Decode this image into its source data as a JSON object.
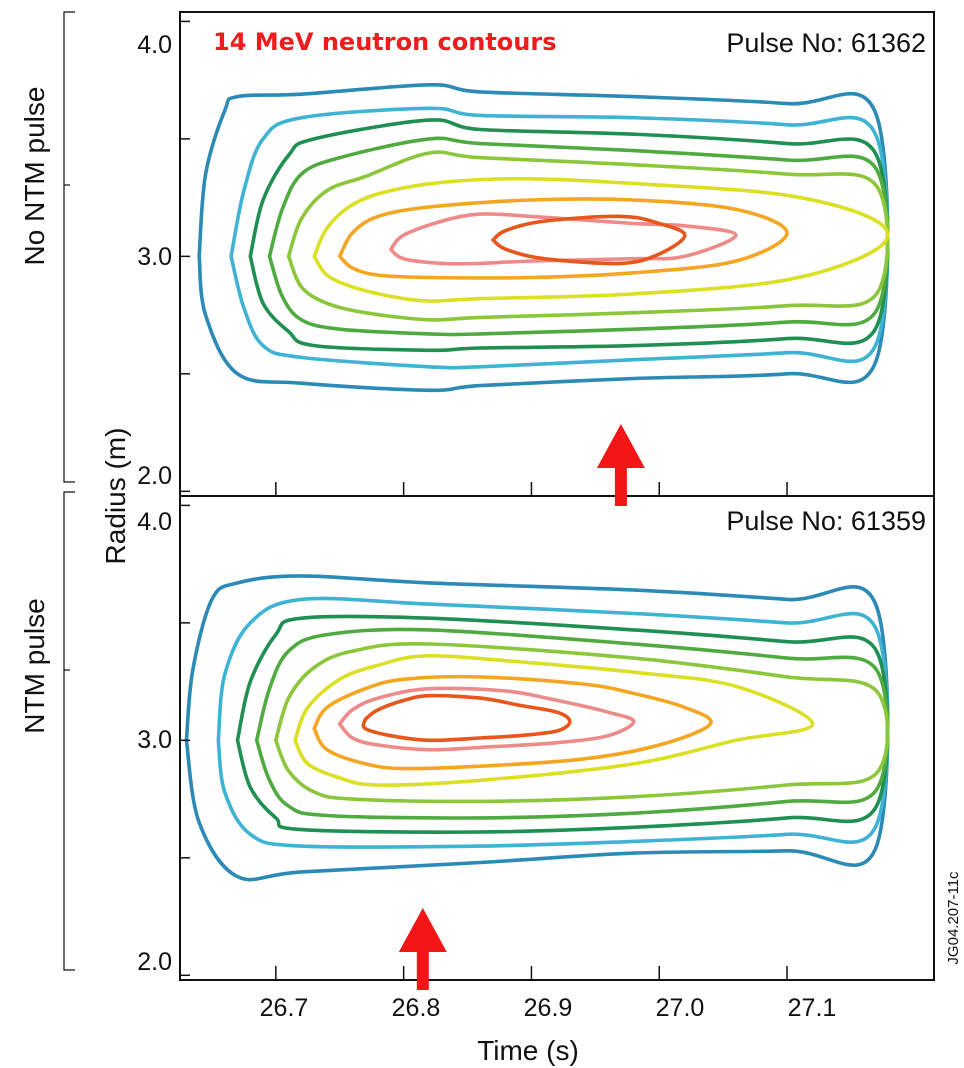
{
  "chart_data": [
    {
      "type": "contour",
      "title": "14 MeV neutron contours",
      "pulse_label": "Pulse No: 61362",
      "side_label": "No NTM pulse",
      "ylabel": "Radius (m)",
      "xlim": [
        26.625,
        27.215
      ],
      "ylim": [
        1.98,
        4.04
      ],
      "y_ticks": [
        "2.0",
        "3.0",
        "4.0"
      ],
      "marker_arrow_time": 26.97,
      "colors": [
        "#2b8ab6",
        "#3fb3d3",
        "#1f8f52",
        "#4fab3f",
        "#8cc63a",
        "#dbe024",
        "#f4a623",
        "#ef8a8a",
        "#e8561c"
      ],
      "contours": [
        [
          [
            26.64,
            3.0
          ],
          [
            26.645,
            3.35
          ],
          [
            26.66,
            3.62
          ],
          [
            26.67,
            3.68
          ],
          [
            26.72,
            3.69
          ],
          [
            26.82,
            3.73
          ],
          [
            26.86,
            3.7
          ],
          [
            26.98,
            3.68
          ],
          [
            27.1,
            3.65
          ],
          [
            27.17,
            3.6
          ],
          [
            27.17,
            2.56
          ],
          [
            27.1,
            2.5
          ],
          [
            26.98,
            2.48
          ],
          [
            26.86,
            2.45
          ],
          [
            26.82,
            2.43
          ],
          [
            26.72,
            2.46
          ],
          [
            26.67,
            2.5
          ],
          [
            26.645,
            2.75
          ],
          [
            26.64,
            3.0
          ]
        ],
        [
          [
            26.665,
            3.0
          ],
          [
            26.675,
            3.28
          ],
          [
            26.69,
            3.5
          ],
          [
            26.72,
            3.59
          ],
          [
            26.82,
            3.63
          ],
          [
            26.86,
            3.6
          ],
          [
            26.98,
            3.59
          ],
          [
            27.1,
            3.56
          ],
          [
            27.17,
            3.51
          ],
          [
            27.17,
            2.63
          ],
          [
            27.1,
            2.59
          ],
          [
            26.98,
            2.56
          ],
          [
            26.86,
            2.53
          ],
          [
            26.82,
            2.53
          ],
          [
            26.72,
            2.57
          ],
          [
            26.69,
            2.62
          ],
          [
            26.675,
            2.78
          ],
          [
            26.665,
            3.0
          ]
        ],
        [
          [
            26.68,
            3.0
          ],
          [
            26.69,
            3.24
          ],
          [
            26.71,
            3.43
          ],
          [
            26.73,
            3.5
          ],
          [
            26.82,
            3.58
          ],
          [
            26.86,
            3.54
          ],
          [
            26.98,
            3.52
          ],
          [
            27.1,
            3.48
          ],
          [
            27.17,
            3.43
          ],
          [
            27.17,
            2.7
          ],
          [
            27.1,
            2.65
          ],
          [
            26.98,
            2.62
          ],
          [
            26.86,
            2.61
          ],
          [
            26.82,
            2.6
          ],
          [
            26.73,
            2.62
          ],
          [
            26.71,
            2.68
          ],
          [
            26.69,
            2.8
          ],
          [
            26.68,
            3.0
          ]
        ],
        [
          [
            26.695,
            3.0
          ],
          [
            26.705,
            3.2
          ],
          [
            26.72,
            3.35
          ],
          [
            26.75,
            3.42
          ],
          [
            26.82,
            3.5
          ],
          [
            26.86,
            3.48
          ],
          [
            26.98,
            3.45
          ],
          [
            27.1,
            3.41
          ],
          [
            27.17,
            3.37
          ],
          [
            27.17,
            2.77
          ],
          [
            27.1,
            2.72
          ],
          [
            26.98,
            2.69
          ],
          [
            26.86,
            2.67
          ],
          [
            26.82,
            2.67
          ],
          [
            26.75,
            2.69
          ],
          [
            26.72,
            2.73
          ],
          [
            26.705,
            2.83
          ],
          [
            26.695,
            3.0
          ]
        ],
        [
          [
            26.71,
            3.0
          ],
          [
            26.72,
            3.16
          ],
          [
            26.74,
            3.28
          ],
          [
            26.77,
            3.34
          ],
          [
            26.82,
            3.44
          ],
          [
            26.86,
            3.42
          ],
          [
            26.98,
            3.39
          ],
          [
            27.1,
            3.35
          ],
          [
            27.17,
            3.3
          ],
          [
            27.17,
            2.84
          ],
          [
            27.1,
            2.79
          ],
          [
            26.98,
            2.76
          ],
          [
            26.86,
            2.74
          ],
          [
            26.82,
            2.73
          ],
          [
            26.77,
            2.76
          ],
          [
            26.74,
            2.8
          ],
          [
            26.72,
            2.87
          ],
          [
            26.71,
            3.0
          ]
        ],
        [
          [
            26.73,
            3.0
          ],
          [
            26.74,
            3.12
          ],
          [
            26.76,
            3.22
          ],
          [
            26.79,
            3.28
          ],
          [
            26.84,
            3.32
          ],
          [
            26.9,
            3.33
          ],
          [
            26.98,
            3.31
          ],
          [
            27.1,
            3.26
          ],
          [
            27.17,
            3.15
          ],
          [
            27.17,
            3.03
          ],
          [
            27.1,
            2.9
          ],
          [
            26.98,
            2.84
          ],
          [
            26.86,
            2.82
          ],
          [
            26.82,
            2.81
          ],
          [
            26.79,
            2.83
          ],
          [
            26.76,
            2.87
          ],
          [
            26.74,
            2.92
          ],
          [
            26.73,
            3.0
          ]
        ],
        [
          [
            26.75,
            3.0
          ],
          [
            26.76,
            3.1
          ],
          [
            26.78,
            3.17
          ],
          [
            26.82,
            3.21
          ],
          [
            26.9,
            3.24
          ],
          [
            26.98,
            3.24
          ],
          [
            27.06,
            3.2
          ],
          [
            27.1,
            3.1
          ],
          [
            27.06,
            2.98
          ],
          [
            26.98,
            2.93
          ],
          [
            26.9,
            2.91
          ],
          [
            26.82,
            2.91
          ],
          [
            26.78,
            2.92
          ],
          [
            26.76,
            2.95
          ],
          [
            26.75,
            3.0
          ]
        ],
        [
          [
            26.79,
            3.03
          ],
          [
            26.8,
            3.09
          ],
          [
            26.83,
            3.15
          ],
          [
            26.86,
            3.18
          ],
          [
            26.9,
            3.17
          ],
          [
            26.98,
            3.14
          ],
          [
            27.02,
            3.13
          ],
          [
            27.06,
            3.09
          ],
          [
            27.02,
            3.0
          ],
          [
            26.98,
            2.99
          ],
          [
            26.9,
            2.98
          ],
          [
            26.86,
            2.97
          ],
          [
            26.83,
            2.97
          ],
          [
            26.8,
            2.99
          ],
          [
            26.79,
            3.03
          ]
        ],
        [
          [
            26.87,
            3.07
          ],
          [
            26.88,
            3.11
          ],
          [
            26.91,
            3.15
          ],
          [
            26.97,
            3.17
          ],
          [
            27.0,
            3.14
          ],
          [
            27.02,
            3.09
          ],
          [
            27.0,
            3.01
          ],
          [
            26.97,
            2.97
          ],
          [
            26.91,
            2.99
          ],
          [
            26.88,
            3.03
          ],
          [
            26.87,
            3.07
          ]
        ]
      ]
    },
    {
      "type": "contour",
      "pulse_label": "Pulse No: 61359",
      "side_label": "NTM pulse",
      "xlabel": "Time (s)",
      "ylabel": "Radius (m)",
      "xlim": [
        26.625,
        27.215
      ],
      "ylim": [
        1.98,
        4.04
      ],
      "x_ticks": [
        "26.7",
        "26.8",
        "26.9",
        "27.0",
        "27.1"
      ],
      "y_ticks": [
        "2.0",
        "3.0",
        "4.0"
      ],
      "marker_arrow_time": 26.815,
      "colors": [
        "#2b8ab6",
        "#3fb3d3",
        "#1f8f52",
        "#4fab3f",
        "#8cc63a",
        "#dbe024",
        "#f4a623",
        "#ef8a8a",
        "#e8561c"
      ],
      "contours": [
        [
          [
            26.63,
            3.0
          ],
          [
            26.635,
            3.3
          ],
          [
            26.65,
            3.6
          ],
          [
            26.67,
            3.67
          ],
          [
            26.72,
            3.7
          ],
          [
            26.82,
            3.67
          ],
          [
            26.98,
            3.64
          ],
          [
            27.1,
            3.6
          ],
          [
            27.17,
            3.57
          ],
          [
            27.17,
            2.55
          ],
          [
            27.1,
            2.53
          ],
          [
            26.98,
            2.52
          ],
          [
            26.86,
            2.48
          ],
          [
            26.72,
            2.44
          ],
          [
            26.67,
            2.42
          ],
          [
            26.64,
            2.65
          ],
          [
            26.63,
            3.0
          ]
        ],
        [
          [
            26.655,
            3.0
          ],
          [
            26.66,
            3.28
          ],
          [
            26.68,
            3.5
          ],
          [
            26.72,
            3.6
          ],
          [
            26.82,
            3.58
          ],
          [
            26.98,
            3.54
          ],
          [
            27.1,
            3.5
          ],
          [
            27.17,
            3.47
          ],
          [
            27.17,
            2.64
          ],
          [
            27.1,
            2.6
          ],
          [
            26.98,
            2.57
          ],
          [
            26.86,
            2.55
          ],
          [
            26.72,
            2.55
          ],
          [
            26.68,
            2.6
          ],
          [
            26.66,
            2.78
          ],
          [
            26.655,
            3.0
          ]
        ],
        [
          [
            26.67,
            3.0
          ],
          [
            26.68,
            3.25
          ],
          [
            26.7,
            3.45
          ],
          [
            26.72,
            3.52
          ],
          [
            26.82,
            3.52
          ],
          [
            26.98,
            3.47
          ],
          [
            27.1,
            3.42
          ],
          [
            27.17,
            3.38
          ],
          [
            27.17,
            2.72
          ],
          [
            27.1,
            2.67
          ],
          [
            26.98,
            2.63
          ],
          [
            26.86,
            2.61
          ],
          [
            26.72,
            2.62
          ],
          [
            26.7,
            2.67
          ],
          [
            26.68,
            2.8
          ],
          [
            26.67,
            3.0
          ]
        ],
        [
          [
            26.685,
            3.0
          ],
          [
            26.695,
            3.22
          ],
          [
            26.71,
            3.38
          ],
          [
            26.74,
            3.45
          ],
          [
            26.82,
            3.47
          ],
          [
            26.98,
            3.41
          ],
          [
            27.1,
            3.35
          ],
          [
            27.17,
            3.3
          ],
          [
            27.17,
            2.79
          ],
          [
            27.1,
            2.74
          ],
          [
            26.98,
            2.69
          ],
          [
            26.86,
            2.67
          ],
          [
            26.74,
            2.68
          ],
          [
            26.71,
            2.72
          ],
          [
            26.695,
            2.83
          ],
          [
            26.685,
            3.0
          ]
        ],
        [
          [
            26.7,
            3.0
          ],
          [
            26.71,
            3.18
          ],
          [
            26.73,
            3.31
          ],
          [
            26.76,
            3.38
          ],
          [
            26.82,
            3.41
          ],
          [
            26.98,
            3.35
          ],
          [
            27.1,
            3.27
          ],
          [
            27.17,
            3.21
          ],
          [
            27.17,
            2.86
          ],
          [
            27.1,
            2.81
          ],
          [
            26.98,
            2.76
          ],
          [
            26.86,
            2.74
          ],
          [
            26.76,
            2.75
          ],
          [
            26.73,
            2.78
          ],
          [
            26.71,
            2.87
          ],
          [
            26.7,
            3.0
          ]
        ],
        [
          [
            26.715,
            3.0
          ],
          [
            26.725,
            3.14
          ],
          [
            26.75,
            3.26
          ],
          [
            26.78,
            3.32
          ],
          [
            26.82,
            3.36
          ],
          [
            26.9,
            3.33
          ],
          [
            26.98,
            3.29
          ],
          [
            27.06,
            3.23
          ],
          [
            27.12,
            3.07
          ],
          [
            27.06,
            3.0
          ],
          [
            26.98,
            2.9
          ],
          [
            26.86,
            2.83
          ],
          [
            26.78,
            2.81
          ],
          [
            26.75,
            2.84
          ],
          [
            26.725,
            2.9
          ],
          [
            26.715,
            3.0
          ]
        ],
        [
          [
            26.73,
            3.05
          ],
          [
            26.74,
            3.14
          ],
          [
            26.77,
            3.22
          ],
          [
            26.8,
            3.26
          ],
          [
            26.86,
            3.27
          ],
          [
            26.94,
            3.24
          ],
          [
            26.98,
            3.2
          ],
          [
            27.02,
            3.14
          ],
          [
            27.04,
            3.07
          ],
          [
            27.0,
            2.98
          ],
          [
            26.94,
            2.92
          ],
          [
            26.86,
            2.89
          ],
          [
            26.8,
            2.88
          ],
          [
            26.77,
            2.9
          ],
          [
            26.74,
            2.96
          ],
          [
            26.73,
            3.05
          ]
        ],
        [
          [
            26.75,
            3.07
          ],
          [
            26.76,
            3.13
          ],
          [
            26.78,
            3.18
          ],
          [
            26.82,
            3.22
          ],
          [
            26.88,
            3.21
          ],
          [
            26.92,
            3.17
          ],
          [
            26.96,
            3.12
          ],
          [
            26.98,
            3.08
          ],
          [
            26.96,
            3.02
          ],
          [
            26.92,
            2.99
          ],
          [
            26.86,
            2.97
          ],
          [
            26.82,
            2.96
          ],
          [
            26.78,
            2.98
          ],
          [
            26.76,
            3.01
          ],
          [
            26.75,
            3.07
          ]
        ],
        [
          [
            26.77,
            3.09
          ],
          [
            26.78,
            3.13
          ],
          [
            26.8,
            3.17
          ],
          [
            26.82,
            3.19
          ],
          [
            26.86,
            3.18
          ],
          [
            26.89,
            3.15
          ],
          [
            26.92,
            3.12
          ],
          [
            26.93,
            3.08
          ],
          [
            26.92,
            3.04
          ],
          [
            26.89,
            3.02
          ],
          [
            26.86,
            3.01
          ],
          [
            26.82,
            3.0
          ],
          [
            26.79,
            3.02
          ],
          [
            26.77,
            3.05
          ],
          [
            26.77,
            3.09
          ]
        ]
      ]
    }
  ],
  "figure_id": "JG04.207-11c"
}
